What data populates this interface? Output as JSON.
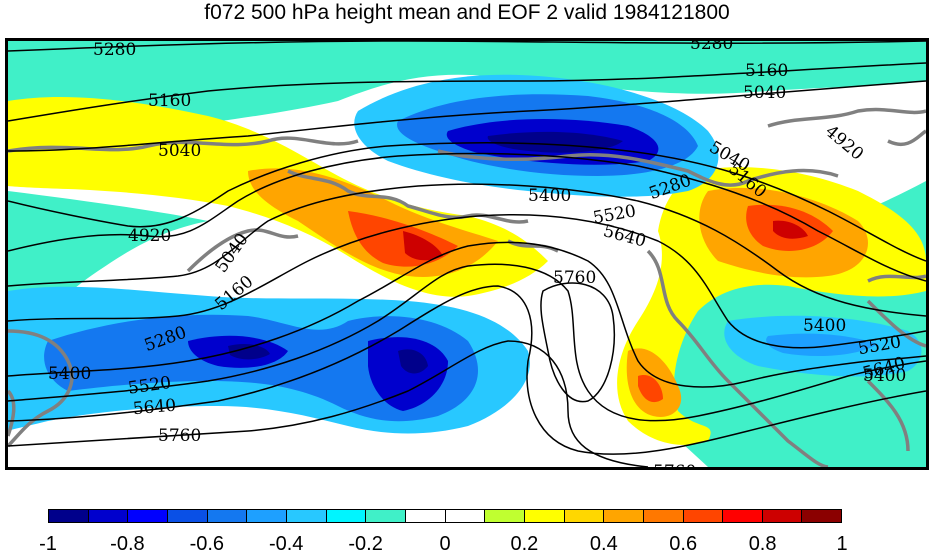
{
  "title": "f072 500 hPa height mean and EOF 2 valid 1984121800",
  "colorbar": {
    "colors": [
      "#00008b",
      "#0000cd",
      "#0000ff",
      "#0a50e6",
      "#1478f0",
      "#1ea0ff",
      "#28c8ff",
      "#00f5ff",
      "#40f0c8",
      "#ffffff",
      "#ffffff",
      "#c0ff30",
      "#ffff00",
      "#ffd700",
      "#ffa500",
      "#ff7800",
      "#ff4500",
      "#ff0000",
      "#cd0000",
      "#8b0000"
    ],
    "ticks": [
      "-1",
      "-0.8",
      "-0.6",
      "-0.4",
      "-0.2",
      "0",
      "0.2",
      "0.4",
      "0.6",
      "0.8",
      "1"
    ]
  },
  "contour_labels": [
    "5280",
    "5280",
    "5160",
    "5160",
    "5040",
    "5040",
    "5040",
    "5040",
    "4920",
    "4920",
    "5160",
    "5160",
    "5280",
    "5400",
    "5520",
    "5640",
    "5400",
    "5520",
    "5640",
    "5760",
    "5760",
    "5280",
    "5400",
    "5400",
    "5520",
    "5640",
    "5760"
  ],
  "map": {
    "coastline_color": "#808080",
    "contour_color": "#000000"
  }
}
